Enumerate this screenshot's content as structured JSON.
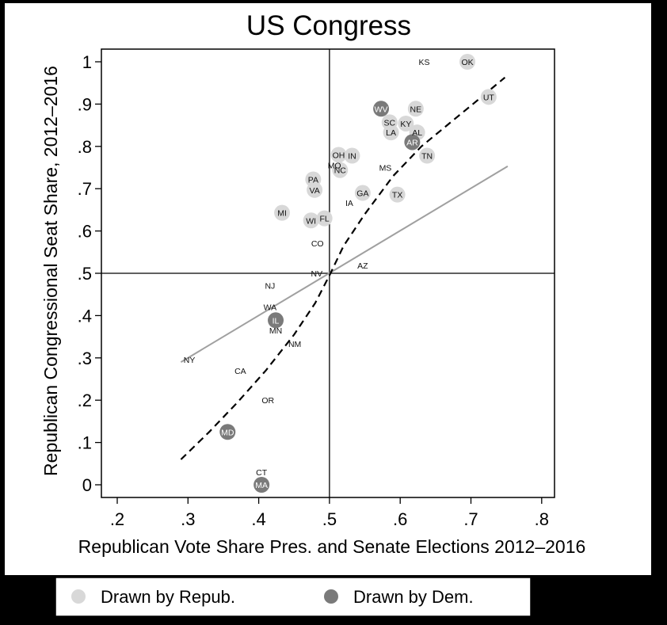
{
  "chart_data": {
    "type": "scatter",
    "title": "US Congress",
    "xlabel": "Republican Vote Share Pres. and Senate Elections 2012–2016",
    "ylabel": "Republican Congressional Seat Share, 2012–2016",
    "xlim": [
      0.18,
      0.82
    ],
    "ylim": [
      -0.03,
      1.06
    ],
    "x_ticks": [
      0.2,
      0.3,
      0.4,
      0.5,
      0.6,
      0.7,
      0.8
    ],
    "x_tick_labels": [
      ".2",
      ".3",
      ".4",
      ".5",
      ".6",
      ".7",
      ".8"
    ],
    "y_ticks": [
      0,
      0.1,
      0.2,
      0.3,
      0.4,
      0.5,
      0.6,
      0.7,
      0.8,
      0.9,
      1
    ],
    "y_tick_labels": [
      "0",
      ".1",
      ".2",
      ".3",
      ".4",
      ".5",
      ".6",
      ".7",
      ".8",
      ".9",
      "1"
    ],
    "reference_lines": {
      "x": 0.5,
      "y": 0.5
    },
    "grid": false,
    "legend": {
      "position": "bottom",
      "entries": [
        {
          "label": "Drawn by Repub.",
          "group": "R",
          "color": "#d8d8d8"
        },
        {
          "label": "Drawn by Dem.",
          "group": "D",
          "color": "#7a7a7a"
        }
      ]
    },
    "fits": [
      {
        "style": "solid",
        "color": "#a0a0a0",
        "x": [
          0.29,
          0.752
        ],
        "y": [
          0.29,
          0.753
        ]
      },
      {
        "style": "dashed",
        "color": "#000000",
        "x": [
          0.29,
          0.33,
          0.37,
          0.41,
          0.45,
          0.48,
          0.5,
          0.52,
          0.55,
          0.59,
          0.63,
          0.67,
          0.71,
          0.748
        ],
        "y": [
          0.06,
          0.125,
          0.195,
          0.27,
          0.355,
          0.43,
          0.495,
          0.565,
          0.64,
          0.73,
          0.8,
          0.855,
          0.91,
          0.963
        ]
      }
    ],
    "points": [
      {
        "label": "KS",
        "x": 0.634,
        "y": 1.0,
        "group": ""
      },
      {
        "label": "OK",
        "x": 0.695,
        "y": 1.0,
        "group": "R"
      },
      {
        "label": "UT",
        "x": 0.725,
        "y": 0.917,
        "group": "R"
      },
      {
        "label": "WV",
        "x": 0.573,
        "y": 0.889,
        "group": "D"
      },
      {
        "label": "NE",
        "x": 0.622,
        "y": 0.889,
        "group": "R"
      },
      {
        "label": "SC",
        "x": 0.585,
        "y": 0.857,
        "group": "R"
      },
      {
        "label": "KY",
        "x": 0.608,
        "y": 0.854,
        "group": "R"
      },
      {
        "label": "LA",
        "x": 0.587,
        "y": 0.833,
        "group": "R"
      },
      {
        "label": "AL",
        "x": 0.624,
        "y": 0.833,
        "group": "R"
      },
      {
        "label": "AR",
        "x": 0.617,
        "y": 0.81,
        "group": "D"
      },
      {
        "label": "OH",
        "x": 0.513,
        "y": 0.78,
        "group": "R"
      },
      {
        "label": "IN",
        "x": 0.532,
        "y": 0.778,
        "group": "R"
      },
      {
        "label": "TN",
        "x": 0.638,
        "y": 0.778,
        "group": "R"
      },
      {
        "label": "MO",
        "x": 0.507,
        "y": 0.756,
        "group": ""
      },
      {
        "label": "NC",
        "x": 0.515,
        "y": 0.744,
        "group": "R"
      },
      {
        "label": "MS",
        "x": 0.579,
        "y": 0.75,
        "group": ""
      },
      {
        "label": "PA",
        "x": 0.477,
        "y": 0.722,
        "group": "R"
      },
      {
        "label": "VA",
        "x": 0.479,
        "y": 0.697,
        "group": "R"
      },
      {
        "label": "GA",
        "x": 0.547,
        "y": 0.69,
        "group": "R"
      },
      {
        "label": "TX",
        "x": 0.596,
        "y": 0.686,
        "group": "R"
      },
      {
        "label": "IA",
        "x": 0.528,
        "y": 0.667,
        "group": ""
      },
      {
        "label": "MI",
        "x": 0.433,
        "y": 0.643,
        "group": "R"
      },
      {
        "label": "WI",
        "x": 0.474,
        "y": 0.625,
        "group": "R"
      },
      {
        "label": "FL",
        "x": 0.493,
        "y": 0.63,
        "group": "R"
      },
      {
        "label": "CO",
        "x": 0.483,
        "y": 0.571,
        "group": ""
      },
      {
        "label": "AZ",
        "x": 0.547,
        "y": 0.519,
        "group": ""
      },
      {
        "label": "NV",
        "x": 0.482,
        "y": 0.5,
        "group": ""
      },
      {
        "label": "NJ",
        "x": 0.416,
        "y": 0.471,
        "group": ""
      },
      {
        "label": "WA",
        "x": 0.416,
        "y": 0.42,
        "group": ""
      },
      {
        "label": "IL",
        "x": 0.424,
        "y": 0.389,
        "group": "D"
      },
      {
        "label": "MN",
        "x": 0.424,
        "y": 0.365,
        "group": ""
      },
      {
        "label": "NM",
        "x": 0.451,
        "y": 0.333,
        "group": ""
      },
      {
        "label": "NY",
        "x": 0.302,
        "y": 0.296,
        "group": ""
      },
      {
        "label": "CA",
        "x": 0.374,
        "y": 0.27,
        "group": ""
      },
      {
        "label": "OR",
        "x": 0.413,
        "y": 0.2,
        "group": ""
      },
      {
        "label": "MD",
        "x": 0.356,
        "y": 0.125,
        "group": "D"
      },
      {
        "label": "CT",
        "x": 0.404,
        "y": 0.03,
        "group": ""
      },
      {
        "label": "MA",
        "x": 0.404,
        "y": 0.0,
        "group": "D"
      }
    ]
  }
}
